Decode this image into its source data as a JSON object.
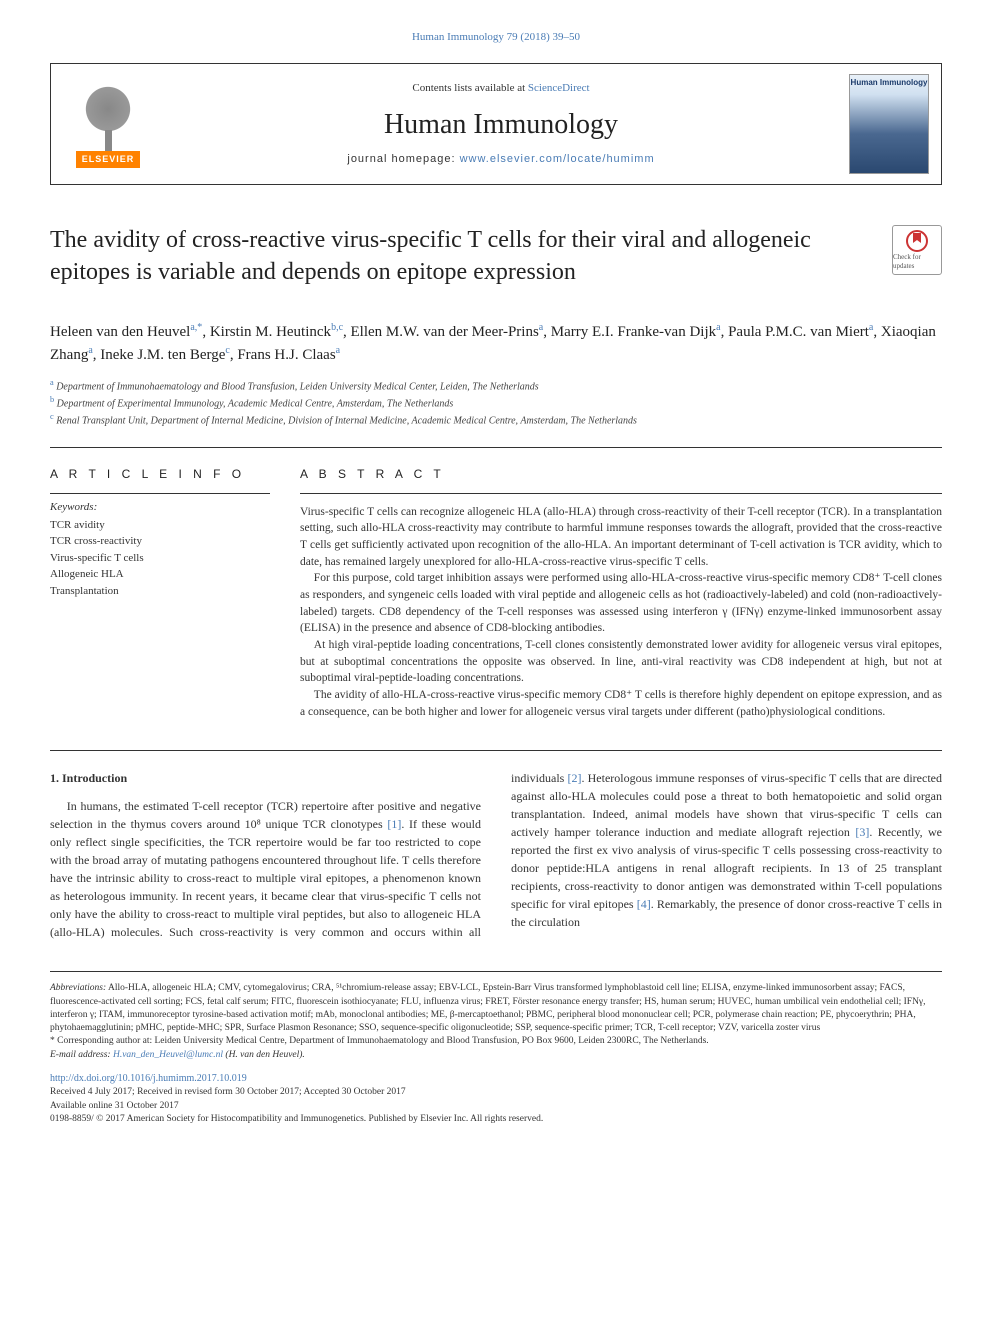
{
  "topLink": "Human Immunology 79 (2018) 39–50",
  "header": {
    "contentsPrefix": "Contents lists available at ",
    "contentsLink": "ScienceDirect",
    "journalName": "Human Immunology",
    "homepagePrefix": "journal homepage: ",
    "homepageUrl": "www.elsevier.com/locate/humimm",
    "elsevier": "ELSEVIER",
    "coverTitle": "Human Immunology"
  },
  "updatesBadge": "Check for updates",
  "article": {
    "title": "The avidity of cross-reactive virus-specific T cells for their viral and allogeneic epitopes is variable and depends on epitope expression",
    "authorsHtml": "Heleen van den Heuvel<sup>a,*</sup>, Kirstin M. Heutinck<sup>b,c</sup>, Ellen M.W. van der Meer-Prins<sup>a</sup>, Marry E.I. Franke-van Dijk<sup>a</sup>, Paula P.M.C. van Miert<sup>a</sup>, Xiaoqian Zhang<sup>a</sup>, Ineke J.M. ten Berge<sup>c</sup>, Frans H.J. Claas<sup>a</sup>",
    "affiliations": [
      {
        "sup": "a",
        "text": "Department of Immunohaematology and Blood Transfusion, Leiden University Medical Center, Leiden, The Netherlands"
      },
      {
        "sup": "b",
        "text": "Department of Experimental Immunology, Academic Medical Centre, Amsterdam, The Netherlands"
      },
      {
        "sup": "c",
        "text": "Renal Transplant Unit, Department of Internal Medicine, Division of Internal Medicine, Academic Medical Centre, Amsterdam, The Netherlands"
      }
    ]
  },
  "info": {
    "heading": "A R T I C L E  I N F O",
    "keywordsLabel": "Keywords:",
    "keywords": [
      "TCR avidity",
      "TCR cross-reactivity",
      "Virus-specific T cells",
      "Allogeneic HLA",
      "Transplantation"
    ]
  },
  "abstract": {
    "heading": "A B S T R A C T",
    "paragraphs": [
      "Virus-specific T cells can recognize allogeneic HLA (allo-HLA) through cross-reactivity of their T-cell receptor (TCR). In a transplantation setting, such allo-HLA cross-reactivity may contribute to harmful immune responses towards the allograft, provided that the cross-reactive T cells get sufficiently activated upon recognition of the allo-HLA. An important determinant of T-cell activation is TCR avidity, which to date, has remained largely unexplored for allo-HLA-cross-reactive virus-specific T cells.",
      "For this purpose, cold target inhibition assays were performed using allo-HLA-cross-reactive virus-specific memory CD8⁺ T-cell clones as responders, and syngeneic cells loaded with viral peptide and allogeneic cells as hot (radioactively-labeled) and cold (non-radioactively-labeled) targets. CD8 dependency of the T-cell responses was assessed using interferon γ (IFNγ) enzyme-linked immunosorbent assay (ELISA) in the presence and absence of CD8-blocking antibodies.",
      "At high viral-peptide loading concentrations, T-cell clones consistently demonstrated lower avidity for allogeneic versus viral epitopes, but at suboptimal concentrations the opposite was observed. In line, anti-viral reactivity was CD8 independent at high, but not at suboptimal viral-peptide-loading concentrations.",
      "The avidity of allo-HLA-cross-reactive virus-specific memory CD8⁺ T cells is therefore highly dependent on epitope expression, and as a consequence, can be both higher and lower for allogeneic versus viral targets under different (patho)physiological conditions."
    ]
  },
  "body": {
    "heading": "1. Introduction",
    "textHtml": "In humans, the estimated T-cell receptor (TCR) repertoire after positive and negative selection in the thymus covers around 10⁸ unique TCR clonotypes <span class='ref-link'>[1]</span>. If these would only reflect single specificities, the TCR repertoire would be far too restricted to cope with the broad array of mutating pathogens encountered throughout life. T cells therefore have the intrinsic ability to cross-react to multiple viral epitopes, a phenomenon known as heterologous immunity. In recent years, it became clear that virus-specific T cells not only have the ability to cross-react to multiple viral peptides, but also to allogeneic HLA (allo-HLA) molecules. Such cross-reactivity is very common and occurs within all individuals <span class='ref-link'>[2]</span>. Heterologous immune responses of virus-specific T cells that are directed against allo-HLA molecules could pose a threat to both hematopoietic and solid organ transplantation. Indeed, animal models have shown that virus-specific T cells can actively hamper tolerance induction and mediate allograft rejection <span class='ref-link'>[3]</span>. Recently, we reported the first ex vivo analysis of virus-specific T cells possessing cross-reactivity to donor peptide:HLA antigens in renal allograft recipients. In 13 of 25 transplant recipients, cross-reactivity to donor antigen was demonstrated within T-cell populations specific for viral epitopes <span class='ref-link'>[4]</span>. Remarkably, the presence of donor cross-reactive T cells in the circulation"
  },
  "footer": {
    "abbrevLabel": "Abbreviations:",
    "abbrevText": " Allo-HLA, allogeneic HLA; CMV, cytomegalovirus; CRA, ⁵¹chromium-release assay; EBV-LCL, Epstein-Barr Virus transformed lymphoblastoid cell line; ELISA, enzyme-linked immunosorbent assay; FACS, fluorescence-activated cell sorting; FCS, fetal calf serum; FITC, fluorescein isothiocyanate; FLU, influenza virus; FRET, Förster resonance energy transfer; HS, human serum; HUVEC, human umbilical vein endothelial cell; IFNγ, interferon γ; ITAM, immunoreceptor tyrosine-based activation motif; mAb, monoclonal antibodies; ME, β-mercaptoethanol; PBMC, peripheral blood mononuclear cell; PCR, polymerase chain reaction; PE, phycoerythrin; PHA, phytohaemagglutinin; pMHC, peptide-MHC; SPR, Surface Plasmon Resonance; SSO, sequence-specific oligonucleotide; SSP, sequence-specific primer; TCR, T-cell receptor; VZV, varicella zoster virus",
    "correspondingLabel": "* Corresponding author at: ",
    "correspondingText": "Leiden University Medical Centre, Department of Immunohaematology and Blood Transfusion, PO Box 9600, Leiden 2300RC, The Netherlands.",
    "emailLabel": "E-mail address: ",
    "email": "H.van_den_Heuvel@lumc.nl",
    "emailAuthor": " (H. van den Heuvel).",
    "doi": "http://dx.doi.org/10.1016/j.humimm.2017.10.019",
    "received": "Received 4 July 2017; Received in revised form 30 October 2017; Accepted 30 October 2017",
    "available": "Available online 31 October 2017",
    "copyright": "0198-8859/ © 2017 American Society for Histocompatibility and Immunogenetics. Published by Elsevier Inc. All rights reserved."
  },
  "colors": {
    "link": "#4a7cb5",
    "elsevierOrange": "#ff8200",
    "text": "#333333",
    "border": "#333333"
  }
}
